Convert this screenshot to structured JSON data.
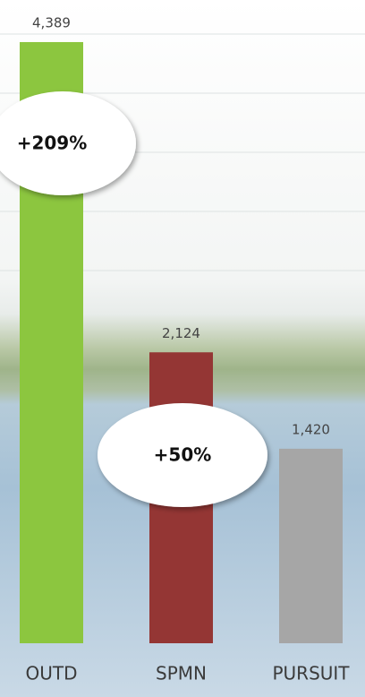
{
  "chart_data": {
    "type": "bar",
    "categories": [
      "OUTD",
      "SPMN",
      "PURSUIT"
    ],
    "values": [
      4389,
      2124,
      1420
    ],
    "value_labels": [
      "4,389",
      "2,124",
      "1,420"
    ],
    "colors": [
      "#8cc63f",
      "#943634",
      "#a6a6a6"
    ],
    "ylim": [
      0,
      4500
    ],
    "annotations": [
      {
        "text": "+209%"
      },
      {
        "text": "+50%"
      }
    ]
  }
}
